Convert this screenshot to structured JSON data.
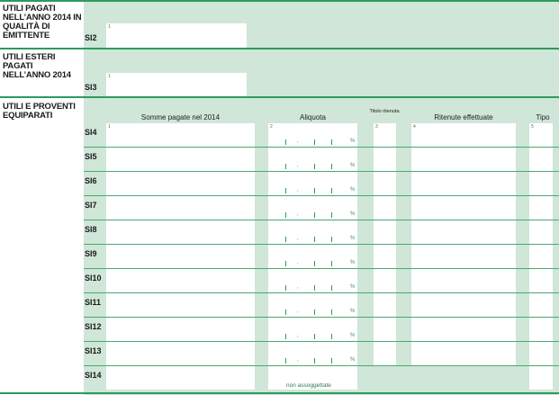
{
  "sections": [
    {
      "title": "UTILI PAGATI NELL’ANNO 2014 IN QUALITÀ DI EMITTENTE",
      "code": "SI2",
      "field_num": "1"
    },
    {
      "title": "UTILI ESTERI PAGATI NELL’ANNO 2014",
      "code": "SI3",
      "field_num": "1"
    },
    {
      "title": "UTILI E PROVENTI EQUIPARATI"
    }
  ],
  "columns": [
    {
      "num": "1",
      "label": "Somme pagate nel 2014"
    },
    {
      "num": "2",
      "label": "Aliquota"
    },
    {
      "num": "3",
      "label": "Titolo ritenuta"
    },
    {
      "num": "4",
      "label": "Ritenute effettuate"
    },
    {
      "num": "5",
      "label": "Tipo"
    }
  ],
  "rows": [
    "SI4",
    "SI5",
    "SI6",
    "SI7",
    "SI8",
    "SI9",
    "SI10",
    "SI11",
    "SI12",
    "SI13",
    "SI14"
  ],
  "percent_sign": "%",
  "comma": ",",
  "si14_note": "non assoggettate",
  "colors": {
    "panel": "#cfe6d8",
    "rule": "#2e9a5c"
  }
}
